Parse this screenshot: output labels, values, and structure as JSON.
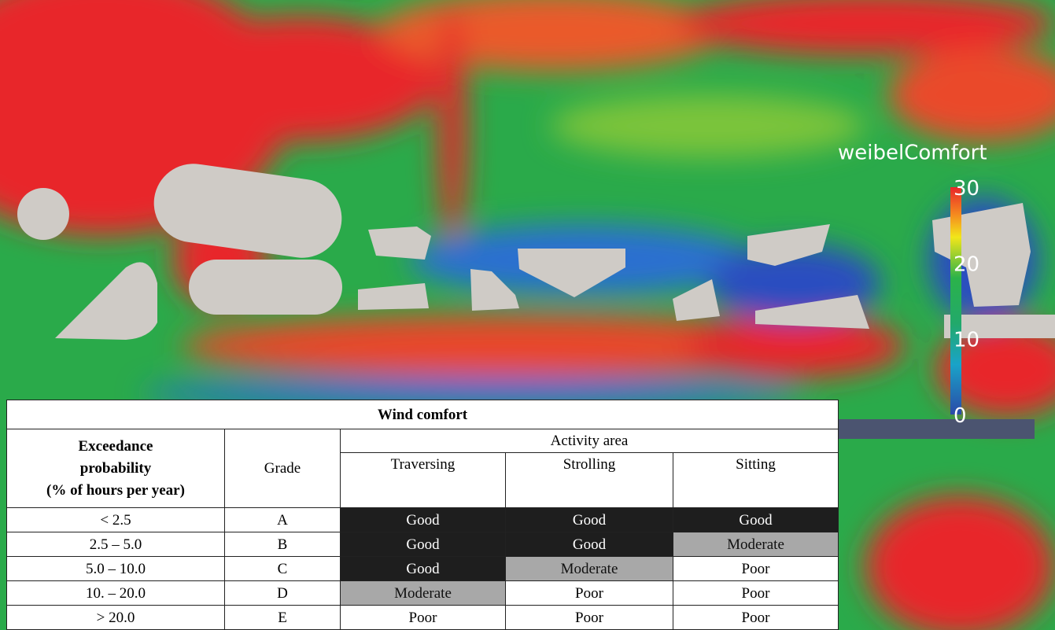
{
  "colorbar": {
    "title": "weibelComfort",
    "lim": [
      0,
      30
    ],
    "ticks": [
      0,
      10,
      20,
      30
    ]
  },
  "table": {
    "title": "Wind comfort",
    "exceedance_header": [
      "Exceedance",
      "probability",
      "(% of hours per year)"
    ],
    "grade_header": "Grade",
    "activity_header": "Activity area",
    "activities": [
      "Traversing",
      "Strolling",
      "Sitting"
    ],
    "rows": [
      [
        "< 2.5",
        "A",
        "Good",
        "Good",
        "Good"
      ],
      [
        "2.5 – 5.0",
        "B",
        "Good",
        "Good",
        "Moderate"
      ],
      [
        "5.0 – 10.0",
        "C",
        "Good",
        "Moderate",
        "Poor"
      ],
      [
        "10. – 20.0",
        "D",
        "Moderate",
        "Poor",
        "Poor"
      ],
      [
        "> 20.0",
        "E",
        "Poor",
        "Poor",
        "Poor"
      ]
    ]
  }
}
